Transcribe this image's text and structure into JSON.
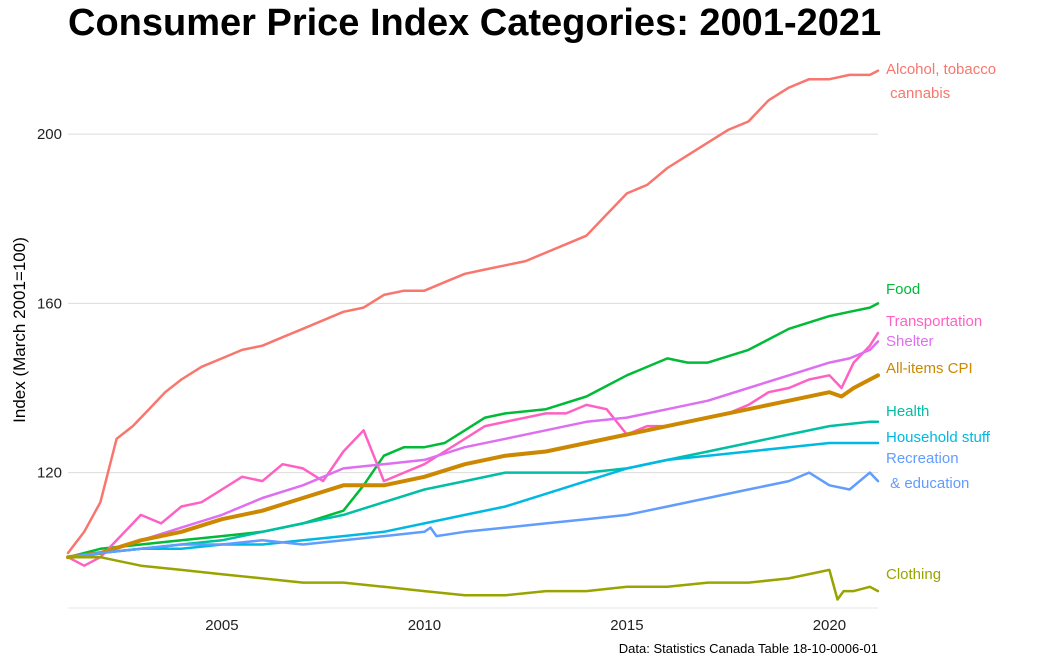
{
  "title": "Consumer Price Index Categories: 2001-2021",
  "caption": "Data: Statistics Canada Table 18-10-0006-01",
  "chart_data": {
    "type": "line",
    "title": "Consumer Price Index Categories: 2001-2021",
    "xlabel": "",
    "ylabel": "Index (March 2001=100)",
    "xlim": [
      2001.2,
      2021.2
    ],
    "ylim": [
      88,
      218
    ],
    "x_ticks": [
      2005,
      2010,
      2015,
      2020
    ],
    "y_ticks": [
      120,
      160,
      200
    ],
    "grid": "horizontal major",
    "legend": "direct labels at right end of lines",
    "series": [
      {
        "name": "Alcohol, tobacco cannabis",
        "label_lines": [
          "Alcohol, tobacco",
          " cannabis"
        ],
        "color": "#F8766D",
        "width": 2.5,
        "x": [
          2001.2,
          2001.6,
          2002.0,
          2002.4,
          2002.8,
          2003.2,
          2003.6,
          2004.0,
          2004.5,
          2005.0,
          2005.5,
          2006.0,
          2006.5,
          2007.0,
          2007.5,
          2008.0,
          2008.5,
          2009.0,
          2009.5,
          2010.0,
          2010.5,
          2011.0,
          2011.5,
          2012.0,
          2012.5,
          2013.0,
          2013.5,
          2014.0,
          2014.5,
          2015.0,
          2015.5,
          2016.0,
          2016.5,
          2017.0,
          2017.5,
          2018.0,
          2018.5,
          2019.0,
          2019.5,
          2020.0,
          2020.5,
          2021.0,
          2021.2
        ],
        "values": [
          101,
          106,
          113,
          128,
          131,
          135,
          139,
          142,
          145,
          147,
          149,
          150,
          152,
          154,
          156,
          158,
          159,
          162,
          163,
          163,
          165,
          167,
          168,
          169,
          170,
          172,
          174,
          176,
          181,
          186,
          188,
          192,
          195,
          198,
          201,
          203,
          208,
          211,
          213,
          213,
          214,
          214,
          215
        ]
      },
      {
        "name": "Food",
        "label_lines": [
          "Food"
        ],
        "color": "#00BA38",
        "width": 2.5,
        "x": [
          2001.2,
          2002.0,
          2003.0,
          2004.0,
          2005.0,
          2006.0,
          2007.0,
          2008.0,
          2008.5,
          2009.0,
          2009.5,
          2010.0,
          2010.5,
          2011.0,
          2011.5,
          2012.0,
          2013.0,
          2014.0,
          2015.0,
          2016.0,
          2016.5,
          2017.0,
          2018.0,
          2019.0,
          2020.0,
          2020.5,
          2021.0,
          2021.2
        ],
        "values": [
          100,
          102,
          103,
          104,
          105,
          106,
          108,
          111,
          117,
          124,
          126,
          126,
          127,
          130,
          133,
          134,
          135,
          138,
          143,
          147,
          146,
          146,
          149,
          154,
          157,
          158,
          159,
          160
        ]
      },
      {
        "name": "Transportation",
        "label_lines": [
          "Transportation"
        ],
        "color": "#FF61C3",
        "width": 2.5,
        "x": [
          2001.2,
          2001.6,
          2002.0,
          2002.5,
          2003.0,
          2003.5,
          2004.0,
          2004.5,
          2005.0,
          2005.5,
          2006.0,
          2006.5,
          2007.0,
          2007.5,
          2008.0,
          2008.5,
          2009.0,
          2009.5,
          2010.0,
          2010.5,
          2011.0,
          2011.5,
          2012.0,
          2012.5,
          2013.0,
          2013.5,
          2014.0,
          2014.5,
          2015.0,
          2015.5,
          2016.0,
          2016.5,
          2017.0,
          2017.5,
          2018.0,
          2018.5,
          2019.0,
          2019.5,
          2020.0,
          2020.3,
          2020.6,
          2021.0,
          2021.2
        ],
        "values": [
          100,
          98,
          100,
          105,
          110,
          108,
          112,
          113,
          116,
          119,
          118,
          122,
          121,
          118,
          125,
          130,
          118,
          120,
          122,
          125,
          128,
          131,
          132,
          133,
          134,
          134,
          136,
          135,
          129,
          131,
          131,
          132,
          133,
          134,
          136,
          139,
          140,
          142,
          143,
          140,
          146,
          150,
          153
        ]
      },
      {
        "name": "Shelter",
        "label_lines": [
          "Shelter"
        ],
        "color": "#DE6FF0",
        "width": 2.5,
        "x": [
          2001.2,
          2002.0,
          2003.0,
          2004.0,
          2005.0,
          2006.0,
          2007.0,
          2008.0,
          2009.0,
          2010.0,
          2011.0,
          2012.0,
          2013.0,
          2014.0,
          2015.0,
          2016.0,
          2017.0,
          2018.0,
          2019.0,
          2020.0,
          2020.5,
          2021.0,
          2021.2
        ],
        "values": [
          100,
          101,
          104,
          107,
          110,
          114,
          117,
          121,
          122,
          123,
          126,
          128,
          130,
          132,
          133,
          135,
          137,
          140,
          143,
          146,
          147,
          149,
          151
        ]
      },
      {
        "name": "All-items CPI",
        "label_lines": [
          "All-items CPI"
        ],
        "color": "#CC8800",
        "width": 4,
        "x": [
          2001.2,
          2002.0,
          2003.0,
          2004.0,
          2005.0,
          2006.0,
          2007.0,
          2008.0,
          2009.0,
          2010.0,
          2011.0,
          2012.0,
          2013.0,
          2014.0,
          2015.0,
          2016.0,
          2017.0,
          2018.0,
          2019.0,
          2020.0,
          2020.3,
          2020.6,
          2021.0,
          2021.2
        ],
        "values": [
          100,
          101,
          104,
          106,
          109,
          111,
          114,
          117,
          117,
          119,
          122,
          124,
          125,
          127,
          129,
          131,
          133,
          135,
          137,
          139,
          138,
          140,
          142,
          143
        ]
      },
      {
        "name": "Health",
        "label_lines": [
          "Health"
        ],
        "color": "#00BFA4",
        "width": 2.5,
        "x": [
          2001.2,
          2002.0,
          2003.0,
          2004.0,
          2005.0,
          2006.0,
          2007.0,
          2008.0,
          2009.0,
          2010.0,
          2011.0,
          2012.0,
          2013.0,
          2014.0,
          2015.0,
          2016.0,
          2017.0,
          2018.0,
          2019.0,
          2020.0,
          2021.0,
          2021.2
        ],
        "values": [
          100,
          101,
          102,
          103,
          104,
          106,
          108,
          110,
          113,
          116,
          118,
          120,
          120,
          120,
          121,
          123,
          125,
          127,
          129,
          131,
          132,
          132
        ]
      },
      {
        "name": "Household stuff",
        "label_lines": [
          "Household stuff"
        ],
        "color": "#00B9E3",
        "width": 2.5,
        "x": [
          2001.2,
          2002.0,
          2003.0,
          2004.0,
          2005.0,
          2006.0,
          2007.0,
          2008.0,
          2009.0,
          2010.0,
          2011.0,
          2012.0,
          2013.0,
          2014.0,
          2015.0,
          2016.0,
          2017.0,
          2018.0,
          2019.0,
          2020.0,
          2021.0,
          2021.2
        ],
        "values": [
          100,
          101,
          102,
          102,
          103,
          103,
          104,
          105,
          106,
          108,
          110,
          112,
          115,
          118,
          121,
          123,
          124,
          125,
          126,
          127,
          127,
          127
        ]
      },
      {
        "name": "Recreation & education",
        "label_lines": [
          "Recreation",
          " & education"
        ],
        "color": "#619CFF",
        "width": 2.5,
        "x": [
          2001.2,
          2002.0,
          2003.0,
          2004.0,
          2005.0,
          2006.0,
          2007.0,
          2008.0,
          2009.0,
          2010.0,
          2010.15,
          2010.3,
          2011.0,
          2012.0,
          2013.0,
          2014.0,
          2015.0,
          2016.0,
          2017.0,
          2018.0,
          2019.0,
          2019.5,
          2020.0,
          2020.5,
          2021.0,
          2021.2
        ],
        "values": [
          100,
          101,
          102,
          103,
          103,
          104,
          103,
          104,
          105,
          106,
          107,
          105,
          106,
          107,
          108,
          109,
          110,
          112,
          114,
          116,
          118,
          120,
          117,
          116,
          120,
          118
        ]
      },
      {
        "name": "Clothing",
        "label_lines": [
          "Clothing"
        ],
        "color": "#9AA400",
        "width": 2.5,
        "x": [
          2001.2,
          2002.0,
          2003.0,
          2004.0,
          2005.0,
          2006.0,
          2007.0,
          2008.0,
          2009.0,
          2010.0,
          2011.0,
          2012.0,
          2013.0,
          2014.0,
          2015.0,
          2016.0,
          2017.0,
          2018.0,
          2019.0,
          2020.0,
          2020.2,
          2020.35,
          2020.6,
          2021.0,
          2021.2
        ],
        "values": [
          100,
          100,
          98,
          97,
          96,
          95,
          94,
          94,
          93,
          92,
          91,
          91,
          92,
          92,
          93,
          93,
          94,
          94,
          95,
          97,
          90,
          92,
          92,
          93,
          92
        ]
      }
    ]
  }
}
